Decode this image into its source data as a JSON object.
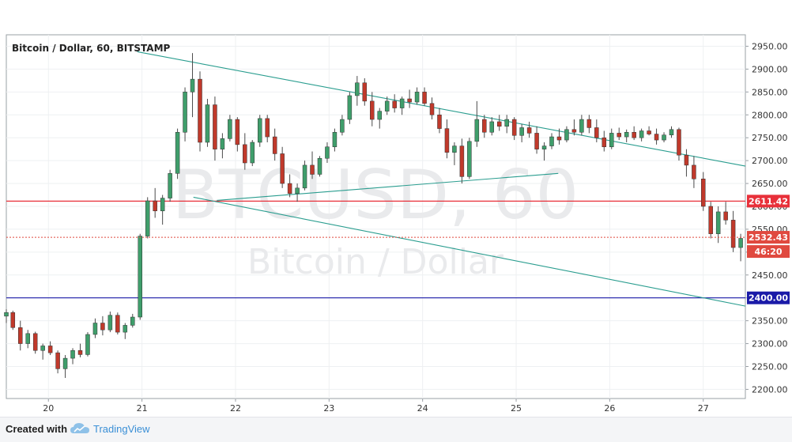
{
  "chart_data": {
    "type": "candlestick",
    "title": "Bitcoin / Dollar, 60, BITSTAMP",
    "symbol": "BTCUSD",
    "interval": "60",
    "exchange": "BITSTAMP",
    "watermark": {
      "line1": "BTCUSD, 60",
      "line2": "Bitcoin / Dollar"
    },
    "x_axis": {
      "range": [
        19.55,
        27.45
      ],
      "ticks": [
        {
          "value": 20,
          "label": "20"
        },
        {
          "value": 21,
          "label": "21"
        },
        {
          "value": 22,
          "label": "22"
        },
        {
          "value": 23,
          "label": "23"
        },
        {
          "value": 24,
          "label": "24"
        },
        {
          "value": 25,
          "label": "25"
        },
        {
          "value": 26,
          "label": "26"
        },
        {
          "value": 27,
          "label": "27"
        }
      ]
    },
    "y_axis": {
      "range": [
        2180,
        2975
      ],
      "ticks": [
        {
          "value": 2950,
          "label": "2950.00"
        },
        {
          "value": 2900,
          "label": "2900.00"
        },
        {
          "value": 2850,
          "label": "2850.00"
        },
        {
          "value": 2800,
          "label": "2800.00"
        },
        {
          "value": 2750,
          "label": "2750.00"
        },
        {
          "value": 2700,
          "label": "2700.00"
        },
        {
          "value": 2650,
          "label": "2650.00"
        },
        {
          "value": 2600,
          "label": "2600.00"
        },
        {
          "value": 2550,
          "label": "2550.00"
        },
        {
          "value": 2500,
          "label": "2500.00"
        },
        {
          "value": 2450,
          "label": "2450.00"
        },
        {
          "value": 2400,
          "label": "2400.00"
        },
        {
          "value": 2350,
          "label": "2350.00"
        },
        {
          "value": 2300,
          "label": "2300.00"
        },
        {
          "value": 2250,
          "label": "2250.00"
        },
        {
          "value": 2200,
          "label": "2200.00"
        }
      ]
    },
    "grid": true,
    "horizontal_lines": [
      {
        "price": 2611.42,
        "label": "2611.42",
        "color": "#e8303a"
      },
      {
        "price": 2400.0,
        "label": "2400.00",
        "color": "#1a1aa8"
      }
    ],
    "last_price": {
      "price": 2532.43,
      "label": "2532.43",
      "countdown": "46:20",
      "color": "#e0493f"
    },
    "trendlines": [
      {
        "x1": 20.95,
        "y1": 2938,
        "x2": 27.45,
        "y2": 2688
      },
      {
        "x1": 21.55,
        "y1": 2620,
        "x2": 27.45,
        "y2": 2382
      },
      {
        "x1": 21.8,
        "y1": 2613,
        "x2": 25.45,
        "y2": 2672
      }
    ],
    "colors": {
      "up": "#3f9e6b",
      "down": "#c0392b",
      "trendline": "#2a9d8f",
      "wick": "#4a4a4a"
    },
    "candles": [
      [
        19.55,
        2360,
        2375,
        2345,
        2368
      ],
      [
        19.62,
        2368,
        2372,
        2330,
        2335
      ],
      [
        19.7,
        2335,
        2350,
        2285,
        2300
      ],
      [
        19.78,
        2300,
        2330,
        2290,
        2322
      ],
      [
        19.86,
        2322,
        2326,
        2278,
        2285
      ],
      [
        19.94,
        2285,
        2300,
        2265,
        2295
      ],
      [
        20.02,
        2295,
        2305,
        2275,
        2280
      ],
      [
        20.1,
        2280,
        2285,
        2235,
        2245
      ],
      [
        20.18,
        2245,
        2275,
        2225,
        2268
      ],
      [
        20.26,
        2268,
        2290,
        2255,
        2285
      ],
      [
        20.34,
        2285,
        2300,
        2270,
        2276
      ],
      [
        20.42,
        2276,
        2325,
        2272,
        2320
      ],
      [
        20.5,
        2320,
        2355,
        2312,
        2345
      ],
      [
        20.58,
        2345,
        2360,
        2318,
        2330
      ],
      [
        20.66,
        2330,
        2370,
        2325,
        2362
      ],
      [
        20.74,
        2362,
        2368,
        2320,
        2325
      ],
      [
        20.82,
        2325,
        2345,
        2310,
        2340
      ],
      [
        20.9,
        2340,
        2365,
        2335,
        2358
      ],
      [
        20.98,
        2358,
        2540,
        2352,
        2535
      ],
      [
        21.06,
        2535,
        2620,
        2530,
        2612
      ],
      [
        21.14,
        2612,
        2640,
        2575,
        2590
      ],
      [
        21.22,
        2590,
        2625,
        2560,
        2618
      ],
      [
        21.3,
        2618,
        2680,
        2610,
        2672
      ],
      [
        21.38,
        2672,
        2770,
        2660,
        2762
      ],
      [
        21.46,
        2762,
        2860,
        2742,
        2850
      ],
      [
        21.54,
        2850,
        2935,
        2795,
        2878
      ],
      [
        21.62,
        2878,
        2895,
        2720,
        2740
      ],
      [
        21.7,
        2740,
        2835,
        2730,
        2822
      ],
      [
        21.78,
        2822,
        2840,
        2700,
        2725
      ],
      [
        21.86,
        2725,
        2760,
        2705,
        2748
      ],
      [
        21.94,
        2748,
        2800,
        2742,
        2790
      ],
      [
        22.02,
        2790,
        2795,
        2720,
        2735
      ],
      [
        22.1,
        2735,
        2760,
        2680,
        2695
      ],
      [
        22.18,
        2695,
        2745,
        2688,
        2740
      ],
      [
        22.26,
        2740,
        2800,
        2730,
        2792
      ],
      [
        22.34,
        2792,
        2800,
        2740,
        2752
      ],
      [
        22.42,
        2752,
        2770,
        2700,
        2715
      ],
      [
        22.5,
        2715,
        2730,
        2640,
        2650
      ],
      [
        22.58,
        2650,
        2670,
        2620,
        2628
      ],
      [
        22.66,
        2628,
        2650,
        2610,
        2640
      ],
      [
        22.74,
        2640,
        2700,
        2635,
        2690
      ],
      [
        22.82,
        2690,
        2720,
        2660,
        2670
      ],
      [
        22.9,
        2670,
        2710,
        2665,
        2705
      ],
      [
        22.98,
        2705,
        2740,
        2695,
        2730
      ],
      [
        23.06,
        2730,
        2770,
        2720,
        2762
      ],
      [
        23.14,
        2762,
        2800,
        2755,
        2790
      ],
      [
        23.22,
        2790,
        2850,
        2780,
        2842
      ],
      [
        23.3,
        2842,
        2885,
        2820,
        2870
      ],
      [
        23.38,
        2870,
        2880,
        2820,
        2830
      ],
      [
        23.46,
        2830,
        2850,
        2775,
        2790
      ],
      [
        23.54,
        2790,
        2815,
        2770,
        2808
      ],
      [
        23.62,
        2808,
        2840,
        2800,
        2830
      ],
      [
        23.7,
        2830,
        2845,
        2805,
        2815
      ],
      [
        23.78,
        2815,
        2840,
        2800,
        2835
      ],
      [
        23.86,
        2835,
        2855,
        2815,
        2828
      ],
      [
        23.94,
        2828,
        2860,
        2822,
        2850
      ],
      [
        24.02,
        2850,
        2860,
        2820,
        2825
      ],
      [
        24.1,
        2825,
        2838,
        2790,
        2800
      ],
      [
        24.18,
        2800,
        2815,
        2760,
        2770
      ],
      [
        24.26,
        2770,
        2790,
        2705,
        2718
      ],
      [
        24.34,
        2718,
        2740,
        2690,
        2732
      ],
      [
        24.42,
        2732,
        2748,
        2650,
        2665
      ],
      [
        24.5,
        2665,
        2750,
        2660,
        2742
      ],
      [
        24.58,
        2742,
        2830,
        2730,
        2790
      ],
      [
        24.66,
        2790,
        2800,
        2750,
        2762
      ],
      [
        24.74,
        2762,
        2795,
        2755,
        2785
      ],
      [
        24.82,
        2785,
        2800,
        2765,
        2775
      ],
      [
        24.9,
        2775,
        2800,
        2760,
        2790
      ],
      [
        24.98,
        2790,
        2795,
        2745,
        2755
      ],
      [
        25.06,
        2755,
        2780,
        2740,
        2772
      ],
      [
        25.14,
        2772,
        2785,
        2750,
        2760
      ],
      [
        25.22,
        2760,
        2775,
        2715,
        2725
      ],
      [
        25.3,
        2725,
        2740,
        2700,
        2732
      ],
      [
        25.38,
        2732,
        2760,
        2725,
        2752
      ],
      [
        25.46,
        2752,
        2770,
        2735,
        2745
      ],
      [
        25.54,
        2745,
        2775,
        2740,
        2768
      ],
      [
        25.62,
        2768,
        2790,
        2755,
        2762
      ],
      [
        25.7,
        2762,
        2800,
        2755,
        2790
      ],
      [
        25.78,
        2790,
        2800,
        2760,
        2772
      ],
      [
        25.86,
        2772,
        2790,
        2740,
        2750
      ],
      [
        25.94,
        2750,
        2765,
        2720,
        2730
      ],
      [
        26.02,
        2730,
        2770,
        2725,
        2760
      ],
      [
        26.1,
        2760,
        2772,
        2745,
        2752
      ],
      [
        26.18,
        2752,
        2768,
        2740,
        2762
      ],
      [
        26.26,
        2762,
        2775,
        2745,
        2750
      ],
      [
        26.34,
        2750,
        2770,
        2742,
        2765
      ],
      [
        26.42,
        2765,
        2775,
        2755,
        2758
      ],
      [
        26.5,
        2758,
        2770,
        2735,
        2745
      ],
      [
        26.58,
        2745,
        2762,
        2740,
        2756
      ],
      [
        26.66,
        2756,
        2775,
        2750,
        2768
      ],
      [
        26.74,
        2768,
        2772,
        2700,
        2712
      ],
      [
        26.82,
        2712,
        2725,
        2665,
        2690
      ],
      [
        26.9,
        2690,
        2710,
        2640,
        2660
      ]
    ],
    "candles_b": [
      [
        27.0,
        2660,
        2675,
        2590,
        2600
      ],
      [
        27.08,
        2600,
        2610,
        2530,
        2540
      ],
      [
        27.16,
        2540,
        2600,
        2520,
        2588
      ],
      [
        27.24,
        2588,
        2610,
        2560,
        2570
      ],
      [
        27.32,
        2570,
        2590,
        2500,
        2510
      ],
      [
        27.4,
        2510,
        2540,
        2480,
        2530
      ]
    ]
  },
  "footer": {
    "created_with": "Created with",
    "brand": "TradingView"
  }
}
